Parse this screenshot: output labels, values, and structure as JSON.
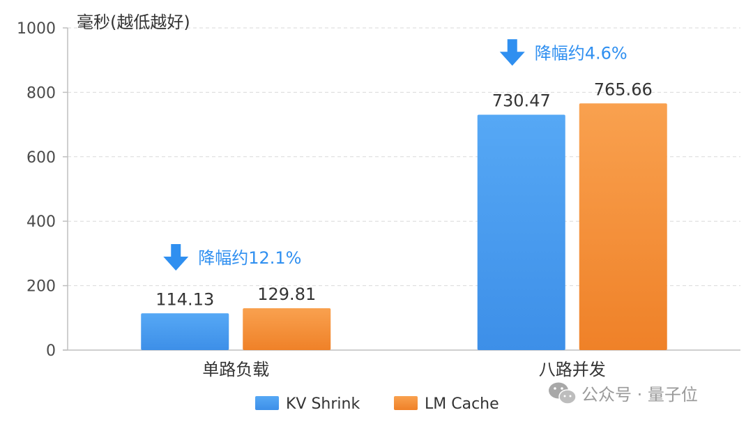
{
  "chart_data": {
    "type": "bar",
    "categories": [
      "单路负载",
      "八路并发"
    ],
    "series": [
      {
        "name": "KV Shrink",
        "values": [
          114.13,
          730.47
        ]
      },
      {
        "name": "LM Cache",
        "values": [
          129.81,
          765.66
        ]
      }
    ],
    "value_labels": [
      [
        "114.13",
        "730.47"
      ],
      [
        "129.81",
        "765.66"
      ]
    ],
    "ylabel": "毫秒(越低越好)",
    "ylim": [
      0,
      1000
    ],
    "yticks": [
      "0",
      "200",
      "400",
      "600",
      "800",
      "1000"
    ],
    "grid": true,
    "legend_position": "bottom",
    "annotations": [
      "降幅约12.1%",
      "降幅约4.6%"
    ],
    "colors": {
      "KV Shrink": "#4a9ff0",
      "LM Cache": "#f5923e",
      "annotation": "#2f8ff0",
      "grid": "#d9d9d9"
    }
  },
  "watermark": {
    "text": "公众号 · 量子位",
    "icon": "wechat-icon"
  }
}
